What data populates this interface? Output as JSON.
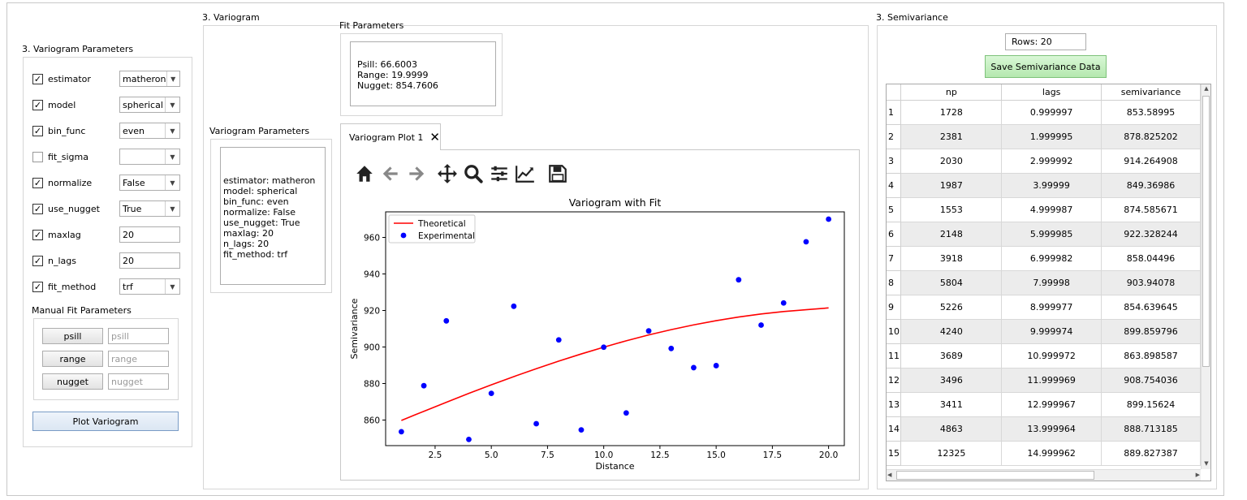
{
  "left_panel": {
    "title": "3. Variogram Parameters",
    "params": [
      {
        "name": "estimator",
        "checked": true,
        "type": "combo",
        "value": "matheron"
      },
      {
        "name": "model",
        "checked": true,
        "type": "combo",
        "value": "spherical"
      },
      {
        "name": "bin_func",
        "checked": true,
        "type": "combo",
        "value": "even"
      },
      {
        "name": "fit_sigma",
        "checked": false,
        "type": "combo",
        "value": ""
      },
      {
        "name": "normalize",
        "checked": true,
        "type": "combo",
        "value": "False"
      },
      {
        "name": "use_nugget",
        "checked": true,
        "type": "combo",
        "value": "True"
      },
      {
        "name": "maxlag",
        "checked": true,
        "type": "field",
        "value": "20"
      },
      {
        "name": "n_lags",
        "checked": true,
        "type": "field",
        "value": "20"
      },
      {
        "name": "fit_method",
        "checked": true,
        "type": "combo",
        "value": "trf"
      }
    ],
    "manual_title": "Manual Fit Parameters",
    "manual": [
      {
        "label": "psill",
        "placeholder": "psill"
      },
      {
        "label": "range",
        "placeholder": "range"
      },
      {
        "label": "nugget",
        "placeholder": "nugget"
      }
    ],
    "plot_button": "Plot Variogram"
  },
  "middle_panel": {
    "title": "3. Variogram",
    "fit_title": "Fit Parameters",
    "fit_text": "Psill: 66.6003\nRange: 19.9999\nNugget: 854.7606",
    "params_title": "Variogram Parameters",
    "params_text": "estimator: matheron\nmodel: spherical\nbin_func: even\nnormalize: False\nuse_nugget: True\nmaxlag: 20\nn_lags: 20\nfit_method: trf",
    "tab_label": "Variogram Plot 1",
    "toolbar": [
      "home-icon",
      "back-arrow-icon",
      "forward-arrow-icon",
      "pan-icon",
      "zoom-icon",
      "configure-subplots-icon",
      "edit-axis-icon",
      "save-icon"
    ]
  },
  "chart_data": {
    "type": "scatter",
    "title": "Variogram with Fit",
    "xlabel": "Distance",
    "ylabel": "Semivariance",
    "xlim": [
      0.3,
      20.7
    ],
    "ylim": [
      846,
      974
    ],
    "xticks": [
      2.5,
      5.0,
      7.5,
      10.0,
      12.5,
      15.0,
      17.5,
      20.0
    ],
    "xtick_labels": [
      "2.5",
      "5.0",
      "7.5",
      "10.0",
      "12.5",
      "15.0",
      "17.5",
      "20.0"
    ],
    "yticks": [
      860,
      880,
      900,
      920,
      940,
      960
    ],
    "ytick_labels": [
      "860",
      "880",
      "900",
      "920",
      "940",
      "960"
    ],
    "legend_position": "top-left",
    "series": [
      {
        "name": "Theoretical",
        "kind": "line",
        "color": "#ff0000",
        "x": [
          1,
          2,
          3,
          4,
          5,
          6,
          7,
          8,
          9,
          10,
          11,
          12,
          13,
          14,
          15,
          16,
          17,
          18,
          19,
          20
        ],
        "y": [
          859.8,
          864.8,
          869.7,
          874.6,
          879.3,
          883.8,
          888.1,
          892.3,
          896.2,
          899.9,
          903.4,
          906.6,
          909.5,
          912.1,
          914.4,
          916.4,
          918.1,
          919.4,
          920.4,
          921.4
        ]
      },
      {
        "name": "Experimental",
        "kind": "scatter",
        "color": "#0000ff",
        "x": [
          1,
          2,
          3,
          4,
          5,
          6,
          7,
          8,
          9,
          10,
          11,
          12,
          13,
          14,
          15,
          16,
          17,
          18,
          19,
          20
        ],
        "y": [
          853.6,
          878.8,
          914.3,
          849.4,
          874.6,
          922.3,
          858.0,
          903.9,
          854.6,
          899.9,
          863.9,
          908.8,
          899.2,
          888.7,
          889.8,
          936.8,
          912.0,
          924.1,
          957.6,
          970.0
        ]
      }
    ]
  },
  "right_panel": {
    "title": "3. Semivariance",
    "rows_label": "Rows: 20",
    "save_button": "Save Semivariance Data",
    "columns": [
      "np",
      "lags",
      "semivariance"
    ],
    "rows": [
      [
        "1",
        "1728",
        "0.999997",
        "853.58995"
      ],
      [
        "2",
        "2381",
        "1.999995",
        "878.825202"
      ],
      [
        "3",
        "2030",
        "2.999992",
        "914.264908"
      ],
      [
        "4",
        "1987",
        "3.99999",
        "849.36986"
      ],
      [
        "5",
        "1553",
        "4.999987",
        "874.585671"
      ],
      [
        "6",
        "2148",
        "5.999985",
        "922.328244"
      ],
      [
        "7",
        "3918",
        "6.999982",
        "858.04496"
      ],
      [
        "8",
        "5804",
        "7.99998",
        "903.94078"
      ],
      [
        "9",
        "5226",
        "8.999977",
        "854.639645"
      ],
      [
        "10",
        "4240",
        "9.999974",
        "899.859796"
      ],
      [
        "11",
        "3689",
        "10.999972",
        "863.898587"
      ],
      [
        "12",
        "3496",
        "11.999969",
        "908.754036"
      ],
      [
        "13",
        "3411",
        "12.999967",
        "899.15624"
      ],
      [
        "14",
        "4863",
        "13.999964",
        "888.713185"
      ],
      [
        "15",
        "12325",
        "14.999962",
        "889.827387"
      ]
    ]
  }
}
